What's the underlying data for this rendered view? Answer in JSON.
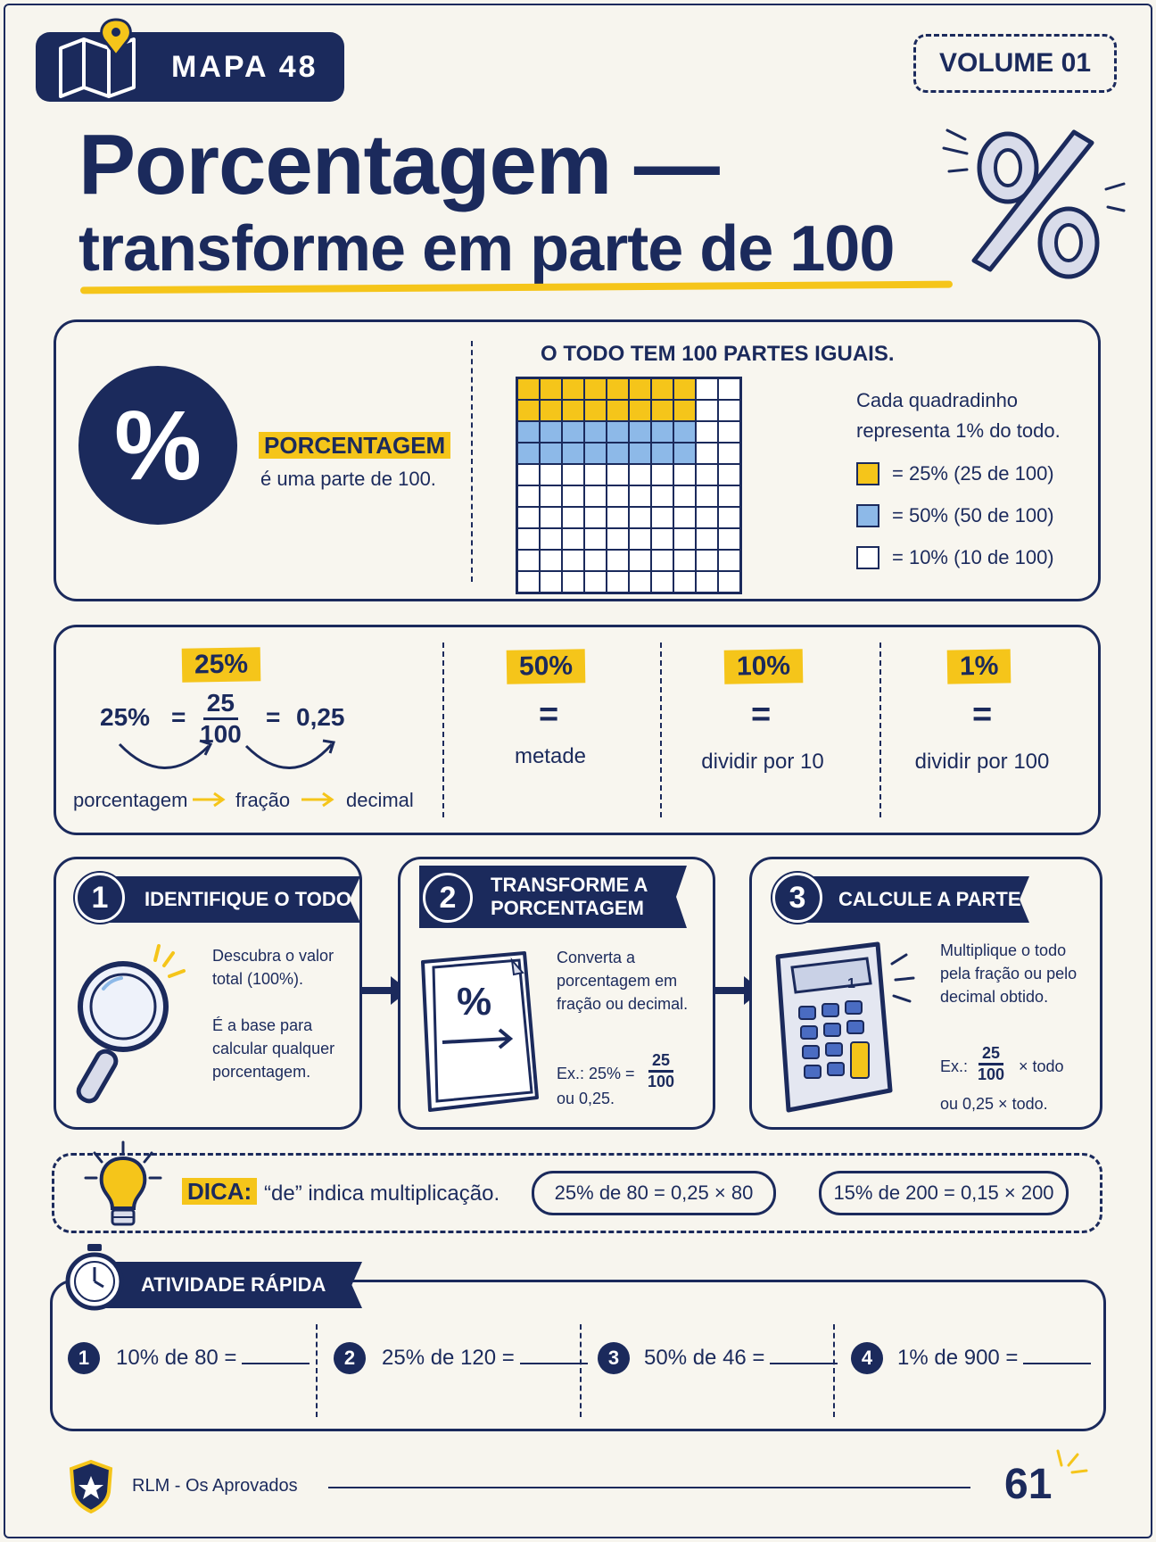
{
  "header": {
    "badge_label": "MAPA 48",
    "volume_label": "VOLUME 01",
    "title_line1": "Porcentagem —",
    "title_line2": "transforme em parte de 100"
  },
  "concept": {
    "circle_symbol": "%",
    "term": "PORCENTAGEM",
    "definition": "é uma parte de 100.",
    "grid_title": "O TODO TEM 100 PARTES IGUAIS.",
    "legend_intro": "Cada quadradinho representa 1% do todo.",
    "legend": [
      {
        "label": "= 25% (25 de 100)",
        "color": "#f5c51a"
      },
      {
        "label": "= 50% (50 de 100)",
        "color": "#8db9e8"
      },
      {
        "label": "= 10% (10 de 100)",
        "color": "#ffffff"
      }
    ]
  },
  "conversions": {
    "main_tag": "25%",
    "eq_left": "25%",
    "eq_sign1": "=",
    "frac_num": "25",
    "frac_den": "100",
    "eq_sign2": "=",
    "eq_right": "0,25",
    "flow": [
      "porcentagem",
      "fração",
      "decimal"
    ],
    "items": [
      {
        "tag": "50%",
        "eq": "=",
        "text": "metade"
      },
      {
        "tag": "10%",
        "eq": "=",
        "text": "dividir por 10"
      },
      {
        "tag": "1%",
        "eq": "=",
        "text": "dividir por 100"
      }
    ]
  },
  "steps": [
    {
      "number": "1",
      "title": "IDENTIFIQUE O TODO",
      "text1": "Descubra o valor total (100%).",
      "text2": "É a base para calcular qualquer porcentagem."
    },
    {
      "number": "2",
      "title": "TRANSFORME A PORCENTAGEM",
      "doc_symbol": "%",
      "text1": "Converta a porcentagem em fração ou decimal.",
      "ex_label": "Ex.: 25% =",
      "ex_num": "25",
      "ex_den": "100",
      "ex_alt": "ou 0,25."
    },
    {
      "number": "3",
      "title": "CALCULE A PARTE",
      "calc_display": "1",
      "text1": "Multiplique o todo pela fração ou pelo decimal obtido.",
      "ex_label": "Ex.:",
      "ex_num": "25",
      "ex_den": "100",
      "ex_tail": "× todo",
      "ex_alt": "ou 0,25 × todo."
    }
  ],
  "tip": {
    "label": "DICA:",
    "text": "“de” indica multiplicação.",
    "examples": [
      "25% de 80 = 0,25 × 80",
      "15% de 200 = 0,15 × 200"
    ]
  },
  "activity": {
    "title": "ATIVIDADE RÁPIDA",
    "items": [
      {
        "number": "1",
        "text": "10% de 80 ="
      },
      {
        "number": "2",
        "text": "25% de 120 ="
      },
      {
        "number": "3",
        "text": "50% de 46 ="
      },
      {
        "number": "4",
        "text": "1% de 900 ="
      }
    ]
  },
  "footer": {
    "brand": "RLM - Os Aprovados",
    "page_number": "61"
  },
  "colors": {
    "navy": "#1b2a5c",
    "yellow": "#f5c51a",
    "blue": "#8db9e8"
  },
  "grid": {
    "yellow_cells": 25,
    "blue_cells": 25
  }
}
